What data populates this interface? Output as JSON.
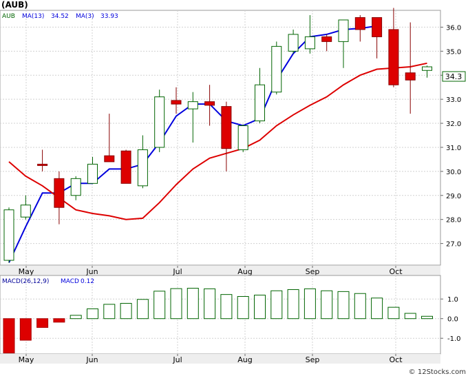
{
  "title": "(AUB)",
  "legend": {
    "ticker": "AUB",
    "ma13_label": "MA(13)",
    "ma13_value": "34.52",
    "ma3_label": "MA(3)",
    "ma3_value": "33.93",
    "macd_params": "MACD(26,12,9)",
    "macd_label": "MACD",
    "macd_value": "0.12"
  },
  "last_price": "34.3",
  "watermark": "© 12Stocks.com",
  "colors": {
    "up_candle": "#006400",
    "down_candle": "#dd0000",
    "ma13": "#0000dd",
    "ma3": "#dd0000",
    "macd_bar": "#006400",
    "legend_text": "#000099"
  },
  "chart_data": [
    {
      "type": "candlestick",
      "x_ticks": [
        "May",
        "Jun",
        "Jul",
        "Aug",
        "Sep",
        "Oct"
      ],
      "y_ticks": [
        "27.0",
        "28.0",
        "29.0",
        "30.0",
        "31.0",
        "32.0",
        "33.0",
        "34.0",
        "35.0",
        "36.0"
      ],
      "ylim": [
        26.1,
        36.7
      ],
      "grid": true,
      "candles": [
        {
          "o": 26.3,
          "h": 28.5,
          "l": 26.2,
          "c": 28.4
        },
        {
          "o": 28.1,
          "h": 29.0,
          "l": 28.0,
          "c": 28.6
        },
        {
          "o": 30.3,
          "h": 30.9,
          "l": 30.0,
          "c": 30.25
        },
        {
          "o": 29.7,
          "h": 30.0,
          "l": 27.8,
          "c": 28.5
        },
        {
          "o": 29.0,
          "h": 29.8,
          "l": 28.8,
          "c": 29.7
        },
        {
          "o": 29.5,
          "h": 30.6,
          "l": 29.5,
          "c": 30.3
        },
        {
          "o": 30.65,
          "h": 32.4,
          "l": 30.4,
          "c": 30.4
        },
        {
          "o": 30.85,
          "h": 30.9,
          "l": 29.5,
          "c": 29.5
        },
        {
          "o": 29.4,
          "h": 31.5,
          "l": 29.3,
          "c": 30.9
        },
        {
          "o": 31.0,
          "h": 33.4,
          "l": 30.8,
          "c": 33.1
        },
        {
          "o": 32.95,
          "h": 33.5,
          "l": 32.4,
          "c": 32.8
        },
        {
          "o": 32.6,
          "h": 33.3,
          "l": 31.2,
          "c": 32.9
        },
        {
          "o": 32.9,
          "h": 33.6,
          "l": 31.9,
          "c": 32.75
        },
        {
          "o": 32.7,
          "h": 32.9,
          "l": 30.0,
          "c": 30.95
        },
        {
          "o": 30.9,
          "h": 31.95,
          "l": 30.8,
          "c": 31.9
        },
        {
          "o": 32.1,
          "h": 34.3,
          "l": 32.0,
          "c": 33.6
        },
        {
          "o": 33.3,
          "h": 35.4,
          "l": 33.2,
          "c": 35.2
        },
        {
          "o": 35.0,
          "h": 35.9,
          "l": 34.9,
          "c": 35.7
        },
        {
          "o": 35.1,
          "h": 36.5,
          "l": 34.9,
          "c": 35.6
        },
        {
          "o": 35.6,
          "h": 35.7,
          "l": 35.0,
          "c": 35.4
        },
        {
          "o": 35.4,
          "h": 36.3,
          "l": 34.3,
          "c": 36.3
        },
        {
          "o": 36.4,
          "h": 36.5,
          "l": 35.4,
          "c": 35.9
        },
        {
          "o": 36.4,
          "h": 36.4,
          "l": 34.7,
          "c": 35.6
        },
        {
          "o": 35.9,
          "h": 36.8,
          "l": 33.5,
          "c": 33.6
        },
        {
          "o": 34.1,
          "h": 36.2,
          "l": 32.4,
          "c": 33.8
        },
        {
          "o": 34.2,
          "h": 34.4,
          "l": 33.9,
          "c": 34.35
        }
      ],
      "ma13": [
        [
          0,
          26.2
        ],
        [
          1,
          27.7
        ],
        [
          2,
          29.1
        ],
        [
          3,
          29.1
        ],
        [
          4,
          29.5
        ],
        [
          5,
          29.5
        ],
        [
          6,
          30.1
        ],
        [
          7,
          30.1
        ],
        [
          8,
          30.3
        ],
        [
          9,
          31.2
        ],
        [
          10,
          32.3
        ],
        [
          11,
          32.8
        ],
        [
          12,
          32.8
        ],
        [
          13,
          32.1
        ],
        [
          14,
          31.9
        ],
        [
          15,
          32.2
        ],
        [
          16,
          33.8
        ],
        [
          17,
          34.9
        ],
        [
          18,
          35.6
        ],
        [
          19,
          35.7
        ],
        [
          20,
          35.9
        ],
        [
          21,
          35.95
        ],
        [
          22,
          36.05
        ]
      ],
      "ma3": [
        [
          0,
          30.4
        ],
        [
          1,
          29.8
        ],
        [
          2,
          29.4
        ],
        [
          3,
          28.9
        ],
        [
          4,
          28.4
        ],
        [
          5,
          28.25
        ],
        [
          6,
          28.15
        ],
        [
          7,
          28.0
        ],
        [
          8,
          28.05
        ],
        [
          9,
          28.7
        ],
        [
          10,
          29.45
        ],
        [
          11,
          30.1
        ],
        [
          12,
          30.55
        ],
        [
          13,
          30.75
        ],
        [
          14,
          30.95
        ],
        [
          15,
          31.3
        ],
        [
          16,
          31.9
        ],
        [
          17,
          32.35
        ],
        [
          18,
          32.75
        ],
        [
          19,
          33.1
        ],
        [
          20,
          33.6
        ],
        [
          21,
          34.0
        ],
        [
          22,
          34.25
        ],
        [
          23,
          34.3
        ],
        [
          24,
          34.35
        ],
        [
          25,
          34.5
        ]
      ],
      "ma3_start_index": 9
    },
    {
      "type": "bar",
      "title": "MACD(26,12,9)",
      "y_ticks": [
        "1.0",
        "0.0",
        "-1.0"
      ],
      "ylim": [
        -1.8,
        2.2
      ],
      "values": [
        -1.75,
        -1.1,
        -0.45,
        -0.18,
        0.17,
        0.5,
        0.73,
        0.78,
        0.98,
        1.4,
        1.53,
        1.55,
        1.52,
        1.23,
        1.13,
        1.2,
        1.42,
        1.48,
        1.52,
        1.42,
        1.38,
        1.28,
        1.05,
        0.58,
        0.27,
        0.12
      ]
    }
  ]
}
